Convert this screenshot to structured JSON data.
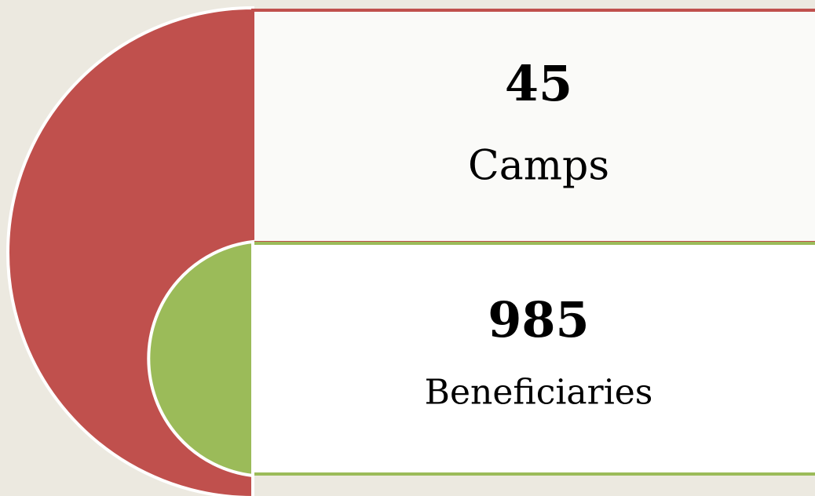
{
  "items": [
    {
      "value": 45,
      "label": "Camps"
    },
    {
      "value": 985,
      "label": "Beneficiaries"
    }
  ]
}
